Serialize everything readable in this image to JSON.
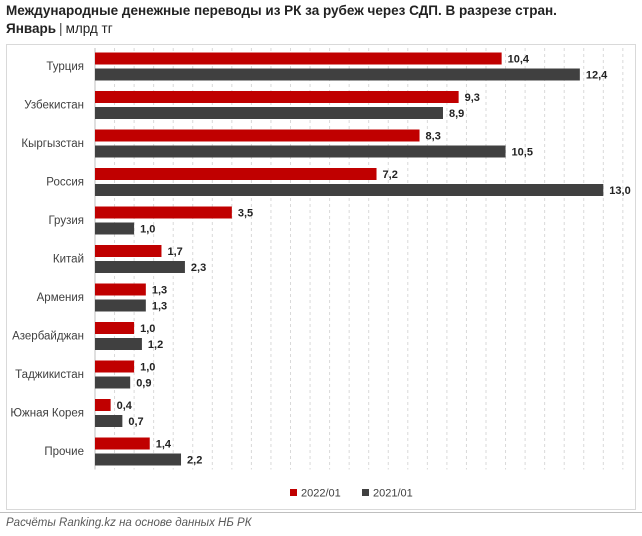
{
  "title": "Международные денежные переводы из РК за рубеж через СДП. В разрезе стран.",
  "subtitle_bold": "Январь",
  "subtitle_sep": "|",
  "subtitle_rest": "млрд тг",
  "source": "Расчёты Ranking.kz на основе данных НБ РК",
  "colors": {
    "series_2022": "#c00000",
    "series_2021": "#404040",
    "grid": "#d9d9d9"
  },
  "chart_data": {
    "type": "bar",
    "orientation": "horizontal",
    "categories": [
      "Турция",
      "Узбекистан",
      "Кыргызстан",
      "Россия",
      "Грузия",
      "Китай",
      "Армения",
      "Азербайджан",
      "Таджикистан",
      "Южная Корея",
      "Прочие"
    ],
    "series": [
      {
        "name": "2022/01",
        "values": [
          10.4,
          9.3,
          8.3,
          7.2,
          3.5,
          1.7,
          1.3,
          1.0,
          1.0,
          0.4,
          1.4
        ],
        "labels": [
          "10,4",
          "9,3",
          "8,3",
          "7,2",
          "3,5",
          "1,7",
          "1,3",
          "1,0",
          "1,0",
          "0,4",
          "1,4"
        ]
      },
      {
        "name": "2021/01",
        "values": [
          12.4,
          8.9,
          10.5,
          13.0,
          1.0,
          2.3,
          1.3,
          1.2,
          0.9,
          0.7,
          2.2
        ],
        "labels": [
          "12,4",
          "8,9",
          "10,5",
          "13,0",
          "1,0",
          "2,3",
          "1,3",
          "1,2",
          "0,9",
          "0,7",
          "2,2"
        ]
      }
    ],
    "xlim": [
      0,
      14
    ],
    "grid": true,
    "legend": "bottom-center"
  }
}
